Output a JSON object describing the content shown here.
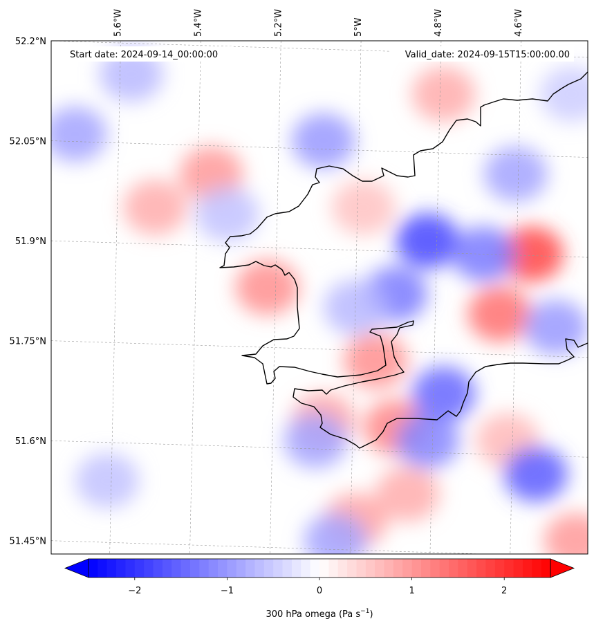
{
  "annotations": {
    "start_date": "Start date: 2024-09-14_00:00:00",
    "valid_date": "Valid_date: 2024-09-15T15:00:00.00"
  },
  "map": {
    "lon_range": [
      -5.76,
      -4.42
    ],
    "lat_range": [
      51.43,
      52.2
    ],
    "lon_ticks": [
      {
        "value": -5.6,
        "label": "5.6°W"
      },
      {
        "value": -5.4,
        "label": "5.4°W"
      },
      {
        "value": -5.2,
        "label": "5.2°W"
      },
      {
        "value": -5.0,
        "label": "5°W"
      },
      {
        "value": -4.8,
        "label": "4.8°W"
      },
      {
        "value": -4.6,
        "label": "4.6°W"
      }
    ],
    "lat_ticks": [
      {
        "value": 52.2,
        "label": "52.2°N"
      },
      {
        "value": 52.05,
        "label": "52.05°N"
      },
      {
        "value": 51.9,
        "label": "51.9°N"
      },
      {
        "value": 51.75,
        "label": "51.75°N"
      },
      {
        "value": 51.6,
        "label": "51.6°N"
      },
      {
        "value": 51.45,
        "label": "51.45°N"
      }
    ],
    "field_range": [
      -2.5,
      2.5
    ],
    "field_cells": [
      {
        "lon": -5.36,
        "lat": 52.0,
        "value": 1.0
      },
      {
        "lon": -5.22,
        "lat": 51.83,
        "value": 1.1
      },
      {
        "lon": -5.08,
        "lat": 51.63,
        "value": 0.9
      },
      {
        "lon": -5.0,
        "lat": 51.48,
        "value": 0.9
      },
      {
        "lon": -5.5,
        "lat": 51.95,
        "value": 0.8
      },
      {
        "lon": -4.95,
        "lat": 51.72,
        "value": 1.1
      },
      {
        "lon": -4.9,
        "lat": 51.62,
        "value": 1.2
      },
      {
        "lon": -4.87,
        "lat": 51.52,
        "value": 0.8
      },
      {
        "lon": -4.78,
        "lat": 52.12,
        "value": 0.8
      },
      {
        "lon": -4.56,
        "lat": 51.88,
        "value": 1.8
      },
      {
        "lon": -4.64,
        "lat": 51.79,
        "value": 1.4
      },
      {
        "lon": -4.62,
        "lat": 51.6,
        "value": 0.7
      },
      {
        "lon": -4.45,
        "lat": 51.45,
        "value": 1.0
      },
      {
        "lon": -4.98,
        "lat": 51.95,
        "value": 0.6
      },
      {
        "lon": -5.7,
        "lat": 52.06,
        "value": -0.9
      },
      {
        "lon": -5.56,
        "lat": 52.15,
        "value": -0.7
      },
      {
        "lon": -5.08,
        "lat": 52.05,
        "value": -1.0
      },
      {
        "lon": -4.82,
        "lat": 51.9,
        "value": -1.8
      },
      {
        "lon": -4.9,
        "lat": 51.82,
        "value": -1.3
      },
      {
        "lon": -4.78,
        "lat": 51.67,
        "value": -1.5
      },
      {
        "lon": -4.82,
        "lat": 51.6,
        "value": -1.2
      },
      {
        "lon": -4.68,
        "lat": 51.88,
        "value": -1.3
      },
      {
        "lon": -4.6,
        "lat": 52.0,
        "value": -0.9
      },
      {
        "lon": -4.5,
        "lat": 51.77,
        "value": -1.0
      },
      {
        "lon": -4.55,
        "lat": 51.55,
        "value": -1.6
      },
      {
        "lon": -5.1,
        "lat": 51.6,
        "value": -0.9
      },
      {
        "lon": -5.0,
        "lat": 51.8,
        "value": -0.7
      },
      {
        "lon": -5.62,
        "lat": 51.54,
        "value": -0.6
      },
      {
        "lon": -5.05,
        "lat": 51.45,
        "value": -0.9
      },
      {
        "lon": -5.32,
        "lat": 51.94,
        "value": -0.6
      },
      {
        "lon": -4.46,
        "lat": 52.12,
        "value": -0.5
      }
    ]
  },
  "colorbar": {
    "min": -2.5,
    "max": 2.5,
    "ticks": [
      {
        "value": -2,
        "label": "−2"
      },
      {
        "value": -1,
        "label": "−1"
      },
      {
        "value": 0,
        "label": "0"
      },
      {
        "value": 1,
        "label": "1"
      },
      {
        "value": 2,
        "label": "2"
      }
    ],
    "label": "300 hPa omega (Pa s",
    "label_exp": "−1",
    "label_end": ")",
    "low_color": "#0000ff",
    "mid_color": "#ffffff",
    "high_color": "#ff0000"
  }
}
